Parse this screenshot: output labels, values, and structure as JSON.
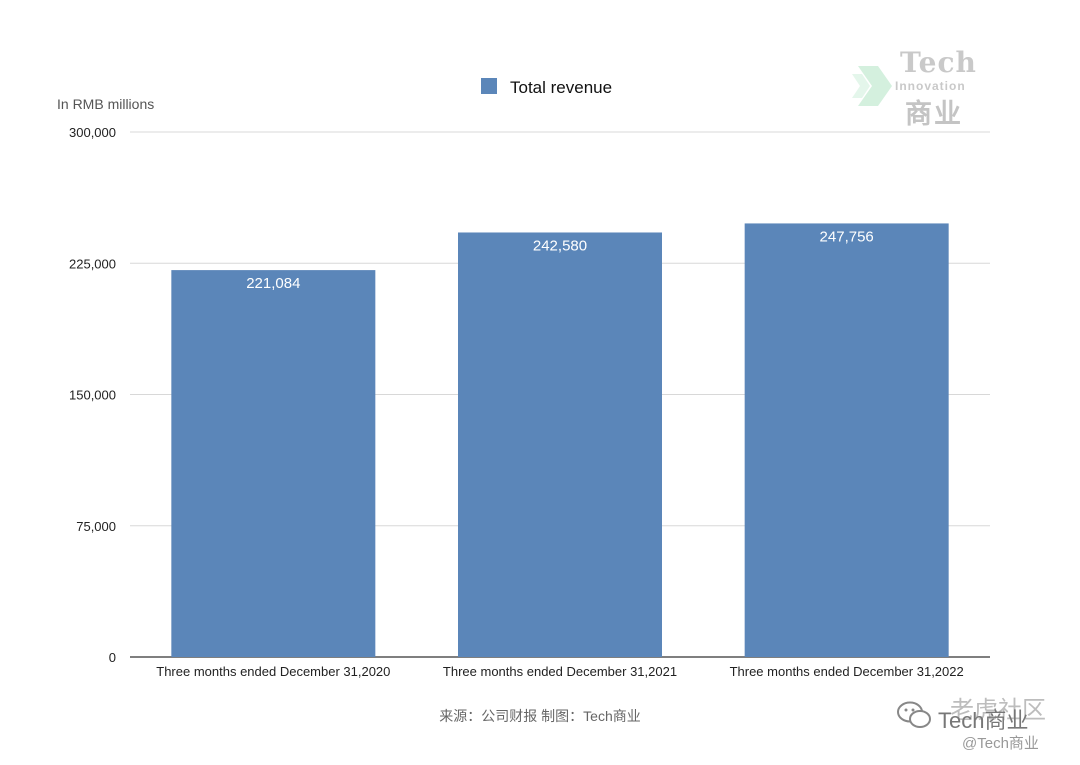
{
  "chart_data": {
    "type": "bar",
    "categories": [
      "Three months ended December 31,2020",
      "Three months ended December 31,2021",
      "Three months ended December 31,2022"
    ],
    "series": [
      {
        "name": "Total revenue",
        "values": [
          221084,
          242580,
          247756
        ],
        "color": "#5b86b9"
      }
    ],
    "data_labels": [
      "221,084",
      "242,580",
      "247,756"
    ],
    "ylabel": "In RMB millions",
    "ylim": [
      0,
      300000
    ],
    "yticks": [
      0,
      75000,
      150000,
      225000,
      300000
    ],
    "ytick_labels": [
      "0",
      "75,000",
      "150,000",
      "225,000",
      "300,000"
    ],
    "grid": true,
    "legend": "top-center"
  },
  "source_text": "来源：公司财报 制图：Tech商业",
  "watermark": {
    "logo_tech": "Tech",
    "logo_innovation": "Innovation",
    "logo_cn": "商业",
    "community": "老虎社区",
    "wechat_name": "Tech商业",
    "handle": "@Tech商业"
  }
}
